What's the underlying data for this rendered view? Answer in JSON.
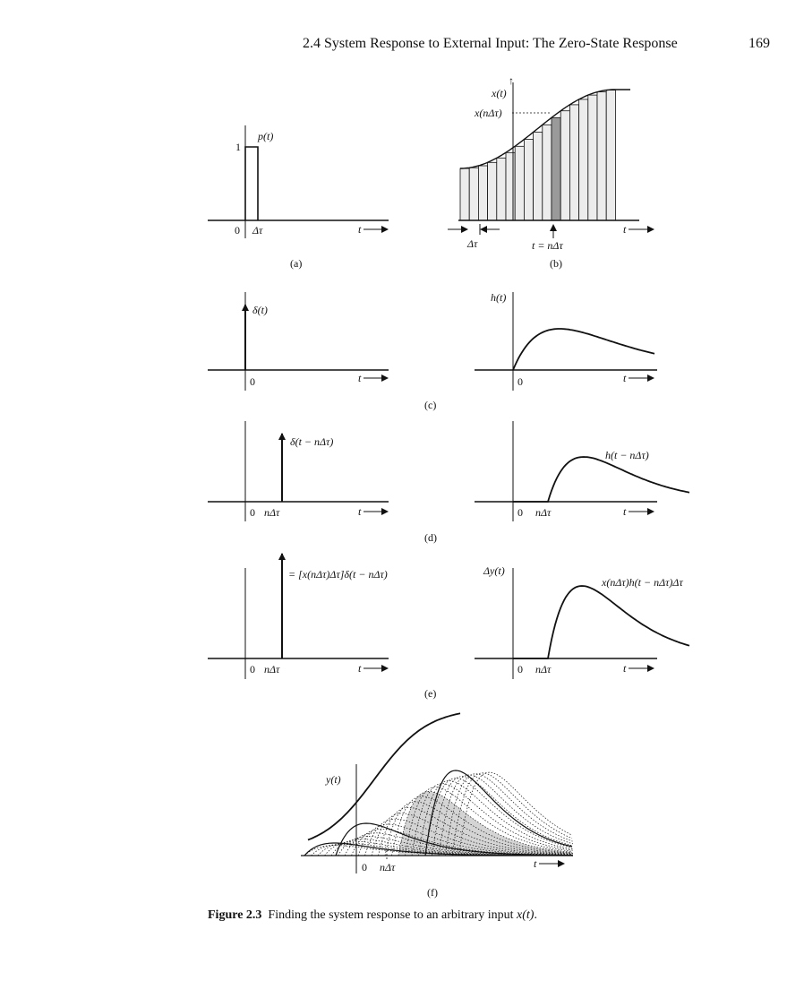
{
  "header": {
    "section_title": "2.4   System Response to External Input: The Zero-State Response",
    "page_number": "169"
  },
  "panels": {
    "a": {
      "label": "(a)",
      "pulse_label": "p(t)",
      "height_label": "1",
      "origin_label": "0",
      "width_label": "Δτ",
      "t_axis_label": "t"
    },
    "b": {
      "label": "(b)",
      "signal_label": "x(t)",
      "sample_label": "x(nΔτ)",
      "width_label": "Δτ",
      "time_label": "t = nΔτ",
      "t_axis_label": "t"
    },
    "c": {
      "label": "(c)",
      "impulse_label": "δ(t)",
      "origin_label_left": "0",
      "response_label": "h(t)",
      "origin_label_right": "0",
      "t_axis_label": "t"
    },
    "d": {
      "label": "(d)",
      "impulse_label": "δ(t − nΔτ)",
      "origin_label_left": "0",
      "shift_label_left": "nΔτ",
      "response_label": "h(t − nΔτ)",
      "origin_label_right": "0",
      "shift_label_right": "nΔτ",
      "t_axis_label": "t"
    },
    "e": {
      "label": "(e)",
      "impulse_label": "= [x(nΔτ)Δτ]δ(t − nΔτ)",
      "origin_label_left": "0",
      "shift_label_left": "nΔτ",
      "response_axis_label": "Δy(t)",
      "response_label": "x(nΔτ)h(t − nΔτ)Δτ",
      "origin_label_right": "0",
      "shift_label_right": "nΔτ",
      "t_axis_label": "t"
    },
    "f": {
      "label": "(f)",
      "output_label": "y(t)",
      "origin_label": "0",
      "shift_label": "nΔτ",
      "t_axis_label": "t"
    }
  },
  "caption": {
    "prefix": "Figure 2.3",
    "text": "Finding the system response to an arbitrary input ",
    "symbol": "x(t)",
    "suffix": "."
  },
  "colors": {
    "ink": "#111111",
    "bar_fill": "#ececec",
    "bar_highlight": "#9a9a9a",
    "shade": "#d4d4d4"
  }
}
